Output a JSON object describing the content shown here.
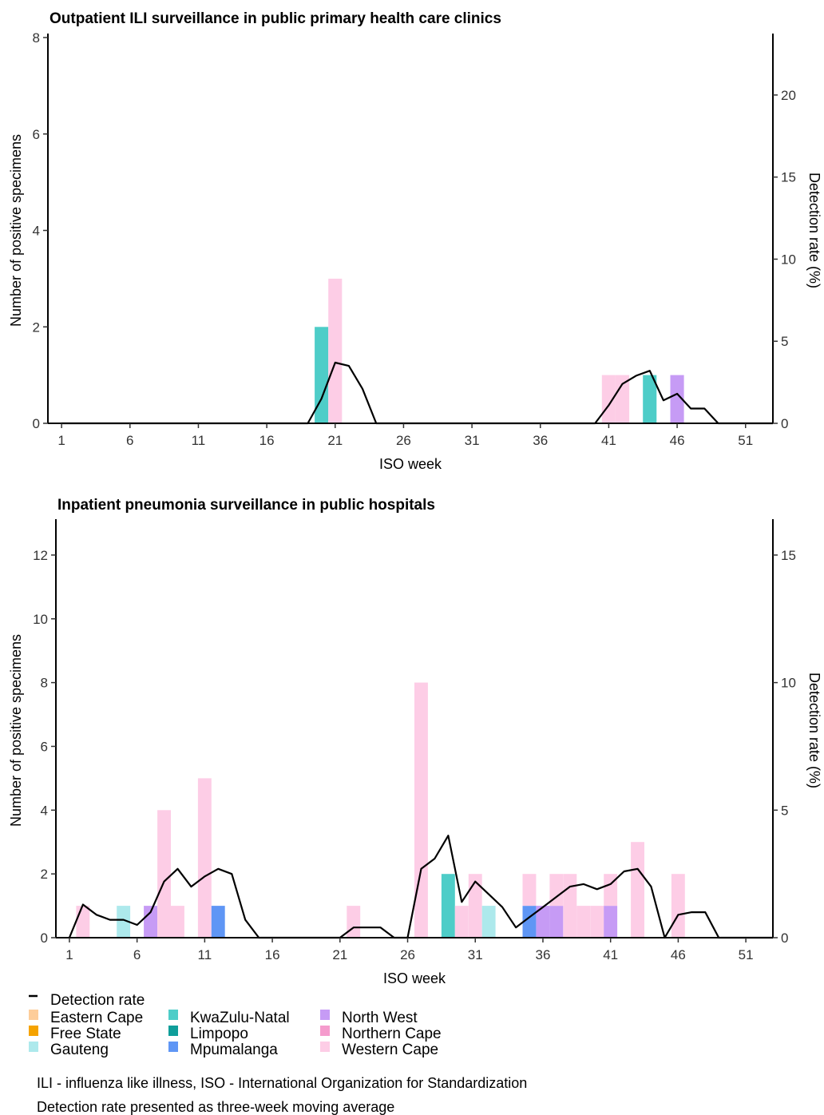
{
  "colors": {
    "Eastern Cape": "#fdcd9a",
    "Free State": "#f5a300",
    "Gauteng": "#ade9ec",
    "KwaZulu-Natal": "#4ecdc8",
    "Limpopo": "#0f9e9a",
    "Mpumalanga": "#5f96f5",
    "North West": "#c69bf5",
    "Northern Cape": "#f59bcd",
    "Western Cape": "#fdcde6",
    "line": "#000000"
  },
  "legend": {
    "line_label": "Detection rate",
    "provinces": [
      "Eastern Cape",
      "Free State",
      "Gauteng",
      "KwaZulu-Natal",
      "Limpopo",
      "Mpumalanga",
      "North West",
      "Northern Cape",
      "Western Cape"
    ]
  },
  "notes": [
    "ILI - influenza like illness, ISO - International Organization for Standardization",
    "Detection rate presented as three-week moving average"
  ],
  "chart_data": [
    {
      "type": "bar",
      "title": "Outpatient ILI surveillance in public primary health care clinics",
      "xlabel": "ISO week",
      "ylabel": "Number of positive specimens",
      "y2label": "Detection rate (%)",
      "xlim": [
        0,
        53
      ],
      "ylim": [
        0,
        8
      ],
      "y2lim": [
        0,
        23.5
      ],
      "xticks": [
        1,
        6,
        11,
        16,
        21,
        26,
        31,
        36,
        41,
        46,
        51
      ],
      "yticks": [
        0,
        2,
        4,
        6,
        8
      ],
      "y2ticks": [
        0,
        5,
        10,
        15,
        20
      ],
      "grid": false,
      "bars": [
        {
          "week": 20,
          "province": "KwaZulu-Natal",
          "value": 2
        },
        {
          "week": 21,
          "province": "Western Cape",
          "value": 3
        },
        {
          "week": 41,
          "province": "Western Cape",
          "value": 1
        },
        {
          "week": 42,
          "province": "Western Cape",
          "value": 1
        },
        {
          "week": 44,
          "province": "KwaZulu-Natal",
          "value": 1
        },
        {
          "week": 46,
          "province": "North West",
          "value": 1
        }
      ],
      "line": {
        "name": "Detection rate",
        "points": [
          [
            1,
            0
          ],
          [
            2,
            0
          ],
          [
            3,
            0
          ],
          [
            4,
            0
          ],
          [
            5,
            0
          ],
          [
            6,
            0
          ],
          [
            7,
            0
          ],
          [
            8,
            0
          ],
          [
            9,
            0
          ],
          [
            10,
            0
          ],
          [
            11,
            0
          ],
          [
            12,
            0
          ],
          [
            13,
            0
          ],
          [
            14,
            0
          ],
          [
            15,
            0
          ],
          [
            16,
            0
          ],
          [
            17,
            0
          ],
          [
            18,
            0
          ],
          [
            19,
            0
          ],
          [
            20,
            1.5
          ],
          [
            21,
            3.7
          ],
          [
            22,
            3.5
          ],
          [
            23,
            2.1
          ],
          [
            24,
            0
          ],
          [
            25,
            0
          ],
          [
            26,
            0
          ],
          [
            27,
            0
          ],
          [
            28,
            0
          ],
          [
            29,
            0
          ],
          [
            30,
            0
          ],
          [
            31,
            0
          ],
          [
            32,
            0
          ],
          [
            33,
            0
          ],
          [
            34,
            0
          ],
          [
            35,
            0
          ],
          [
            36,
            0
          ],
          [
            37,
            0
          ],
          [
            38,
            0
          ],
          [
            39,
            0
          ],
          [
            40,
            0
          ],
          [
            41,
            1.1
          ],
          [
            42,
            2.4
          ],
          [
            43,
            2.9
          ],
          [
            44,
            3.2
          ],
          [
            45,
            1.4
          ],
          [
            46,
            1.8
          ],
          [
            47,
            0.9
          ],
          [
            48,
            0.9
          ],
          [
            49,
            0
          ],
          [
            50,
            0
          ],
          [
            51,
            0
          ],
          [
            52,
            0
          ],
          [
            53,
            0
          ]
        ]
      }
    },
    {
      "type": "bar",
      "title": "Inpatient pneumonia surveillance in public hospitals",
      "xlabel": "ISO week",
      "ylabel": "Number of positive specimens",
      "y2label": "Detection rate (%)",
      "xlim": [
        0,
        53
      ],
      "ylim": [
        0,
        13
      ],
      "y2lim": [
        0,
        16.25
      ],
      "xticks": [
        1,
        6,
        11,
        16,
        21,
        26,
        31,
        36,
        41,
        46,
        51
      ],
      "yticks": [
        0,
        2,
        4,
        6,
        8,
        10,
        12
      ],
      "y2ticks": [
        0,
        5,
        10,
        15
      ],
      "grid": false,
      "bars": [
        {
          "week": 2,
          "province": "Western Cape",
          "value": 1
        },
        {
          "week": 5,
          "province": "Gauteng",
          "value": 1
        },
        {
          "week": 7,
          "province": "North West",
          "value": 1
        },
        {
          "week": 8,
          "province": "Western Cape",
          "value": 4
        },
        {
          "week": 9,
          "province": "Western Cape",
          "value": 1
        },
        {
          "week": 11,
          "province": "Western Cape",
          "value": 5
        },
        {
          "week": 12,
          "province": "Mpumalanga",
          "value": 1
        },
        {
          "week": 22,
          "province": "Western Cape",
          "value": 1
        },
        {
          "week": 27,
          "province": "Western Cape",
          "value": 8
        },
        {
          "week": 29,
          "province": "KwaZulu-Natal",
          "value": 2
        },
        {
          "week": 30,
          "province": "Western Cape",
          "value": 1
        },
        {
          "week": 31,
          "province": "Western Cape",
          "value": 2
        },
        {
          "week": 32,
          "province": "Gauteng",
          "value": 1
        },
        {
          "week": 35,
          "province": "Mpumalanga",
          "value": 1
        },
        {
          "week": 35,
          "province": "Western Cape",
          "value": 1
        },
        {
          "week": 36,
          "province": "North West",
          "value": 1
        },
        {
          "week": 37,
          "province": "North West",
          "value": 1
        },
        {
          "week": 37,
          "province": "Western Cape",
          "value": 1
        },
        {
          "week": 38,
          "province": "Western Cape",
          "value": 2
        },
        {
          "week": 39,
          "province": "Western Cape",
          "value": 1
        },
        {
          "week": 40,
          "province": "Western Cape",
          "value": 1
        },
        {
          "week": 41,
          "province": "North West",
          "value": 1
        },
        {
          "week": 41,
          "province": "Western Cape",
          "value": 1
        },
        {
          "week": 43,
          "province": "Western Cape",
          "value": 3
        },
        {
          "week": 46,
          "province": "Western Cape",
          "value": 2
        }
      ],
      "line": {
        "name": "Detection rate",
        "points": [
          [
            1,
            0
          ],
          [
            2,
            1.3
          ],
          [
            3,
            0.9
          ],
          [
            4,
            0.7
          ],
          [
            5,
            0.7
          ],
          [
            6,
            0.5
          ],
          [
            7,
            1.0
          ],
          [
            8,
            2.2
          ],
          [
            9,
            2.7
          ],
          [
            10,
            2.0
          ],
          [
            11,
            2.4
          ],
          [
            12,
            2.7
          ],
          [
            13,
            2.5
          ],
          [
            14,
            0.7
          ],
          [
            15,
            0
          ],
          [
            16,
            0
          ],
          [
            17,
            0
          ],
          [
            18,
            0
          ],
          [
            19,
            0
          ],
          [
            20,
            0
          ],
          [
            21,
            0
          ],
          [
            22,
            0.4
          ],
          [
            23,
            0.4
          ],
          [
            24,
            0.4
          ],
          [
            25,
            0
          ],
          [
            26,
            0
          ],
          [
            27,
            2.7
          ],
          [
            28,
            3.1
          ],
          [
            29,
            4.0
          ],
          [
            30,
            1.4
          ],
          [
            31,
            2.2
          ],
          [
            32,
            1.7
          ],
          [
            33,
            1.2
          ],
          [
            34,
            0.4
          ],
          [
            35,
            0.8
          ],
          [
            36,
            1.2
          ],
          [
            37,
            1.6
          ],
          [
            38,
            2.0
          ],
          [
            39,
            2.1
          ],
          [
            40,
            1.9
          ],
          [
            41,
            2.1
          ],
          [
            42,
            2.6
          ],
          [
            43,
            2.7
          ],
          [
            44,
            2.0
          ],
          [
            45,
            0
          ],
          [
            46,
            0.9
          ],
          [
            47,
            1.0
          ],
          [
            48,
            1.0
          ],
          [
            49,
            0
          ],
          [
            50,
            0
          ],
          [
            51,
            0
          ],
          [
            52,
            0
          ],
          [
            53,
            0
          ]
        ]
      }
    }
  ]
}
